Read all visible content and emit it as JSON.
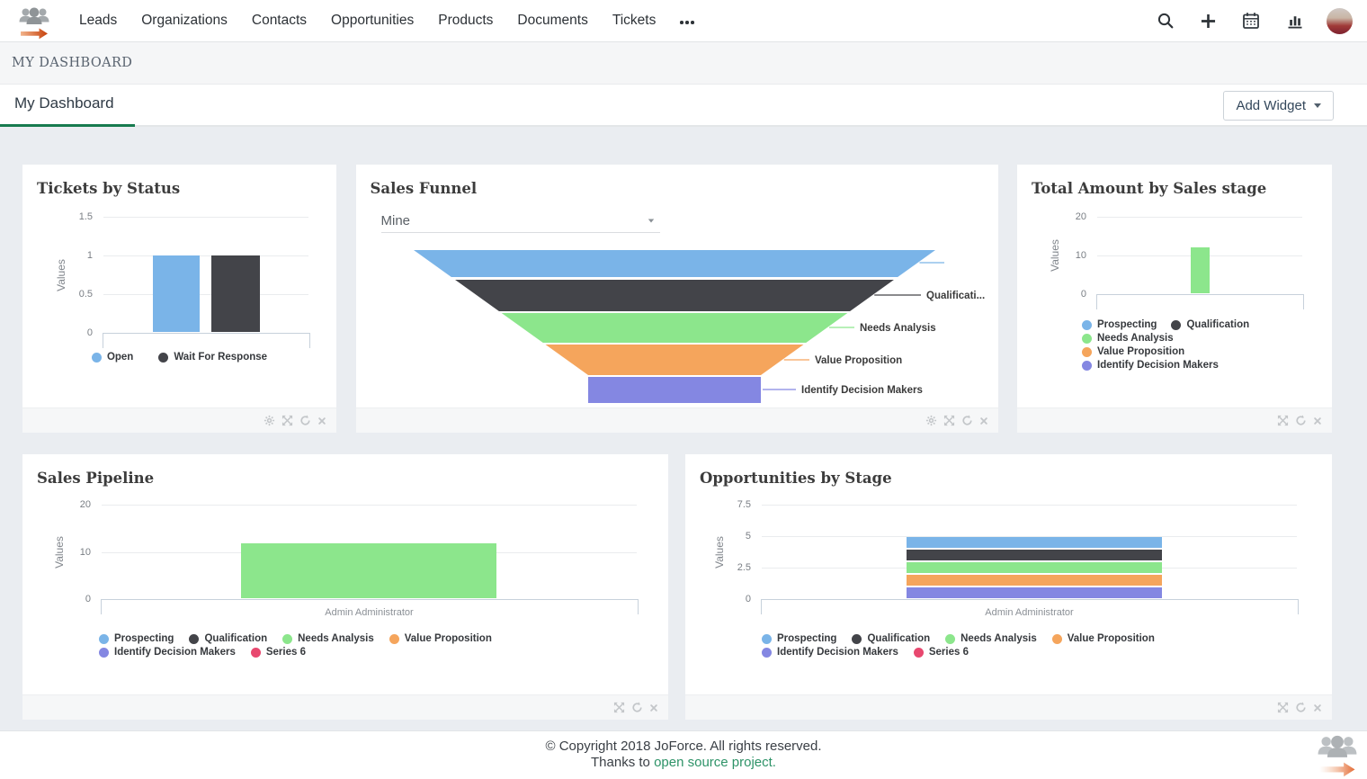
{
  "header": {
    "nav_items": [
      "Leads",
      "Organizations",
      "Contacts",
      "Opportunities",
      "Products",
      "Documents",
      "Tickets"
    ],
    "icons": [
      "search",
      "quick-create",
      "calendar",
      "reports"
    ]
  },
  "breadcrumb": {
    "title": "MY DASHBOARD"
  },
  "tabbar": {
    "tab": "My Dashboard",
    "add_widget_label": "Add Widget"
  },
  "palette": {
    "blue": "#7AB4E8",
    "dark": "#434449",
    "green": "#8CE68C",
    "orange": "#F5A55C",
    "purple": "#8487E2",
    "pink": "#E8486F",
    "accent_green": "#177B4F",
    "link_green": "#2E9368"
  },
  "widgets": [
    {
      "id": "tickets-by-status",
      "title": "Tickets by Status",
      "controls": [
        "settings",
        "maximize",
        "refresh",
        "close"
      ],
      "chart": {
        "type": "bar",
        "ylabel": "Values",
        "ylim": [
          0,
          1.5
        ],
        "yticks": [
          "0",
          "0.5",
          "1",
          "1.5"
        ],
        "categories": [
          "Open",
          "Wait For Response"
        ],
        "values": [
          1,
          1
        ],
        "colors": [
          "blue",
          "dark"
        ],
        "legend": [
          {
            "label": "Open",
            "color": "blue"
          },
          {
            "label": "Wait For Response",
            "color": "dark"
          }
        ]
      }
    },
    {
      "id": "sales-funnel",
      "title": "Sales Funnel",
      "controls": [
        "settings",
        "maximize",
        "refresh",
        "close"
      ],
      "filter_value": "Mine",
      "chart": {
        "type": "funnel",
        "stages": [
          {
            "label": "",
            "color": "blue"
          },
          {
            "label": "Qualificati...",
            "color": "dark"
          },
          {
            "label": "Needs Analysis",
            "color": "green"
          },
          {
            "label": "Value Proposition",
            "color": "orange"
          },
          {
            "label": "Identify Decision Makers",
            "color": "purple"
          }
        ]
      }
    },
    {
      "id": "total-amount-by-sales-stage",
      "title": "Total Amount by Sales stage",
      "controls": [
        "maximize",
        "refresh",
        "close"
      ],
      "chart": {
        "type": "bar",
        "ylabel": "Values",
        "ylim": [
          0,
          20
        ],
        "yticks": [
          "0",
          "10",
          "20"
        ],
        "categories": [
          "Needs Analysis"
        ],
        "values": [
          12
        ],
        "colors": [
          "green"
        ],
        "legend": [
          {
            "label": "Prospecting",
            "color": "blue"
          },
          {
            "label": "Qualification",
            "color": "dark"
          },
          {
            "label": "Needs Analysis",
            "color": "green"
          },
          {
            "label": "Value Proposition",
            "color": "orange"
          },
          {
            "label": "Identify Decision Makers",
            "color": "purple"
          }
        ]
      }
    },
    {
      "id": "sales-pipeline",
      "title": "Sales Pipeline",
      "controls": [
        "maximize",
        "refresh",
        "close"
      ],
      "chart": {
        "type": "bar",
        "ylabel": "Values",
        "ylim": [
          0,
          20
        ],
        "yticks": [
          "0",
          "10",
          "20"
        ],
        "categories": [
          "Admin Administrator"
        ],
        "xlabel": "Admin Administrator",
        "values": [
          11.8
        ],
        "colors": [
          "green"
        ],
        "legend": [
          {
            "label": "Prospecting",
            "color": "blue"
          },
          {
            "label": "Qualification",
            "color": "dark"
          },
          {
            "label": "Needs Analysis",
            "color": "green"
          },
          {
            "label": "Value Proposition",
            "color": "orange"
          },
          {
            "label": "Identify Decision Makers",
            "color": "purple"
          },
          {
            "label": "Series 6",
            "color": "pink"
          }
        ]
      }
    },
    {
      "id": "opportunities-by-stage",
      "title": "Opportunities by Stage",
      "controls": [
        "maximize",
        "refresh",
        "close"
      ],
      "chart": {
        "type": "stacked-bar",
        "ylabel": "Values",
        "ylim": [
          0,
          7.5
        ],
        "yticks": [
          "0",
          "2.5",
          "5",
          "7.5"
        ],
        "categories": [
          "Admin Administrator"
        ],
        "xlabel": "Admin Administrator",
        "series": [
          {
            "name": "Prospecting",
            "color": "blue",
            "values": [
              1
            ]
          },
          {
            "name": "Qualification",
            "color": "dark",
            "values": [
              1
            ]
          },
          {
            "name": "Needs Analysis",
            "color": "green",
            "values": [
              1
            ]
          },
          {
            "name": "Value Proposition",
            "color": "orange",
            "values": [
              1
            ]
          },
          {
            "name": "Identify Decision Makers",
            "color": "purple",
            "values": [
              1
            ]
          },
          {
            "name": "Series 6",
            "color": "pink",
            "values": [
              0
            ]
          }
        ],
        "stack_order_bottom_to_top": [
          "Identify Decision Makers",
          "Value Proposition",
          "Needs Analysis",
          "Qualification",
          "Prospecting"
        ],
        "legend": [
          {
            "label": "Prospecting",
            "color": "blue"
          },
          {
            "label": "Qualification",
            "color": "dark"
          },
          {
            "label": "Needs Analysis",
            "color": "green"
          },
          {
            "label": "Value Proposition",
            "color": "orange"
          },
          {
            "label": "Identify Decision Makers",
            "color": "purple"
          },
          {
            "label": "Series 6",
            "color": "pink"
          }
        ]
      }
    }
  ],
  "footer": {
    "copyright": "© Copyright 2018 JoForce. All rights reserved.",
    "thanks_prefix": "Thanks to",
    "thanks_link": "open source project."
  }
}
